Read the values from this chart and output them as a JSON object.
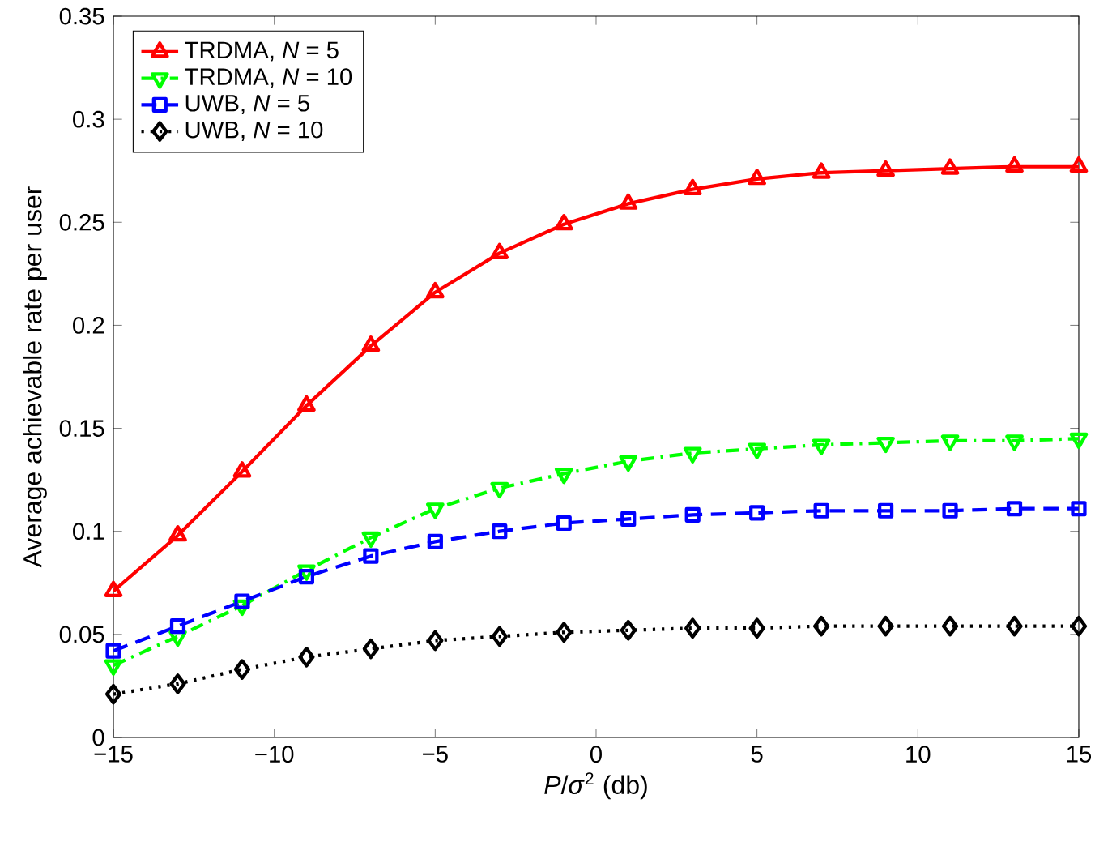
{
  "chart_data": {
    "type": "line",
    "xlabel": "*P*/*σ*$^{2}$ (db)",
    "ylabel": "Average achievable rate per user",
    "x": [
      -15,
      -13,
      -11,
      -9,
      -7,
      -5,
      -3,
      -1,
      1,
      3,
      5,
      7,
      9,
      11,
      13,
      15
    ],
    "series": [
      {
        "name": "TRDMA, *N* = 5",
        "color": "#ff0000",
        "marker": "triangle",
        "line_style": "solid",
        "values": [
          0.071,
          0.098,
          0.129,
          0.161,
          0.19,
          0.216,
          0.235,
          0.249,
          0.259,
          0.266,
          0.271,
          0.274,
          0.275,
          0.276,
          0.277,
          0.277
        ]
      },
      {
        "name": "TRDMA, *N* = 10",
        "color": "#00ff00",
        "marker": "triangle-down",
        "line_style": "dashdot",
        "values": [
          0.035,
          0.049,
          0.064,
          0.081,
          0.097,
          0.111,
          0.121,
          0.128,
          0.134,
          0.138,
          0.14,
          0.142,
          0.143,
          0.144,
          0.144,
          0.145
        ]
      },
      {
        "name": "UWB, *N* = 5",
        "color": "#0000ff",
        "marker": "square",
        "line_style": "dashed",
        "values": [
          0.042,
          0.054,
          0.066,
          0.078,
          0.088,
          0.095,
          0.1,
          0.104,
          0.106,
          0.108,
          0.109,
          0.11,
          0.11,
          0.11,
          0.111,
          0.111
        ]
      },
      {
        "name": "UWB, *N* = 10",
        "color": "#000000",
        "marker": "diamond",
        "line_style": "dotted",
        "values": [
          0.021,
          0.026,
          0.033,
          0.039,
          0.043,
          0.047,
          0.049,
          0.051,
          0.052,
          0.053,
          0.053,
          0.054,
          0.054,
          0.054,
          0.054,
          0.054
        ]
      }
    ],
    "xlim": [
      -15,
      15
    ],
    "xticks": [
      {
        "value": -15,
        "label": "−15"
      },
      {
        "value": -10,
        "label": "−10"
      },
      {
        "value": -5,
        "label": "−5"
      },
      0,
      5,
      10,
      15
    ],
    "ylim": [
      0,
      0.35
    ],
    "yticks": [
      0,
      0.05,
      0.1,
      0.15,
      0.2,
      0.25,
      0.3,
      0.35
    ],
    "grid": false,
    "legend": "top left"
  }
}
